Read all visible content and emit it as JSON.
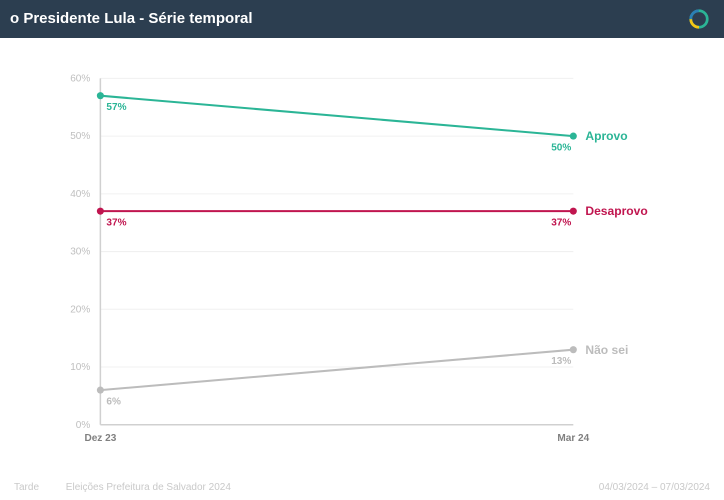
{
  "header": {
    "title": "o Presidente Lula - Série temporal"
  },
  "chart": {
    "type": "line",
    "background_color": "#ffffff",
    "ylim": [
      0,
      60
    ],
    "ytick_step": 10,
    "ytick_suffix": "%",
    "xcategories": [
      "Dez 23",
      "Mar 24"
    ],
    "axis_label_color": "#bfbfbf",
    "xaxis_label_color": "#808080",
    "grid_color": "#f0f0f0",
    "axis_line_color": "#d0d0d0",
    "point_radius": 3.5,
    "line_width": 2,
    "label_fontsize": 10,
    "series_label_fontsize": 12,
    "series": [
      {
        "name": "Aprovo",
        "color": "#2bb596",
        "values": [
          57,
          50
        ],
        "value_labels": [
          "57%",
          "50%"
        ]
      },
      {
        "name": "Desaprovo",
        "color": "#c0154f",
        "values": [
          37,
          37
        ],
        "value_labels": [
          "37%",
          "37%"
        ]
      },
      {
        "name": "Não sei",
        "color": "#bcbcbc",
        "values": [
          6,
          13
        ],
        "value_labels": [
          "6%",
          "13%"
        ]
      }
    ]
  },
  "footer": {
    "left1": "Tarde",
    "left2": "Eleições Prefeitura de Salvador 2024",
    "right": "04/03/2024 – 07/03/2024"
  }
}
